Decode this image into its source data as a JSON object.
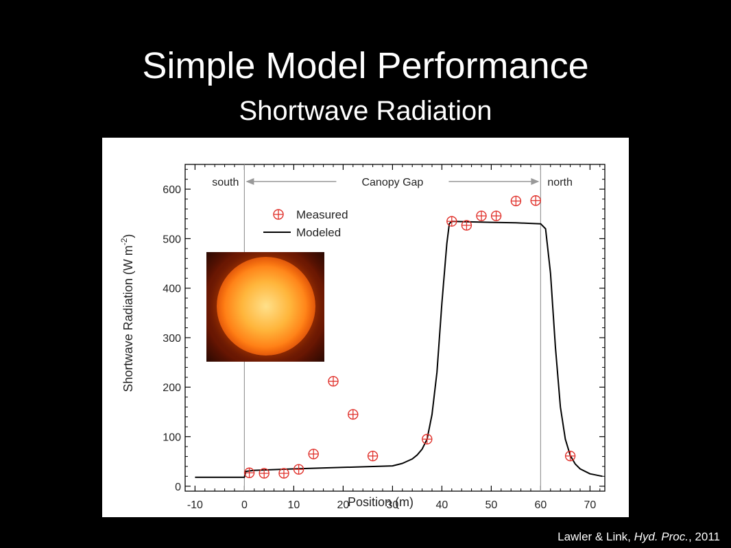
{
  "slide": {
    "title": "Simple Model Performance",
    "subtitle": "Shortwave Radiation",
    "citation_authors": "Lawler & Link, ",
    "citation_journal": "Hyd. Proc.",
    "citation_year": ", 2011"
  },
  "image": {
    "name": "sun-photo"
  },
  "chart_data": {
    "type": "scatter",
    "xlabel": "Position (m)",
    "ylabel": "Shortwave Radiation (W m",
    "ylabel_sup": "-2",
    "ylabel_close": ")",
    "xlim": [
      -12,
      73
    ],
    "ylim": [
      -10,
      650
    ],
    "xticks": [
      -10,
      0,
      10,
      20,
      30,
      40,
      50,
      60,
      70
    ],
    "yticks": [
      0,
      100,
      200,
      300,
      400,
      500,
      600
    ],
    "grid": false,
    "legend_position": "top-left",
    "annotations": {
      "south": "south",
      "north": "north",
      "gap": "Canopy Gap",
      "gap_start_x": 0,
      "gap_end_x": 60
    },
    "series": [
      {
        "name": "Measured",
        "type": "scatter",
        "marker": "circled-plus",
        "color": "#e0302a",
        "x": [
          1,
          4,
          8,
          11,
          14,
          18,
          22,
          26,
          37,
          42,
          45,
          48,
          51,
          55,
          59,
          66
        ],
        "y": [
          27,
          26,
          26,
          34,
          65,
          212,
          145,
          61,
          95,
          535,
          527,
          546,
          546,
          576,
          577,
          61
        ]
      },
      {
        "name": "Modeled",
        "type": "line",
        "color": "#000000",
        "x": [
          -10,
          -2,
          0,
          0.3,
          2,
          10,
          20,
          30,
          32,
          34,
          35,
          36,
          37,
          38,
          39,
          40,
          41,
          41.5,
          42,
          45,
          50,
          55,
          60,
          61,
          62,
          63,
          64,
          65,
          66,
          67,
          68,
          70,
          72.5
        ],
        "y": [
          18,
          18,
          18,
          30,
          32,
          35,
          38,
          41,
          46,
          55,
          63,
          75,
          95,
          145,
          230,
          370,
          490,
          530,
          535,
          534,
          533,
          532,
          530,
          520,
          430,
          280,
          160,
          95,
          62,
          45,
          35,
          25,
          20
        ]
      }
    ]
  }
}
